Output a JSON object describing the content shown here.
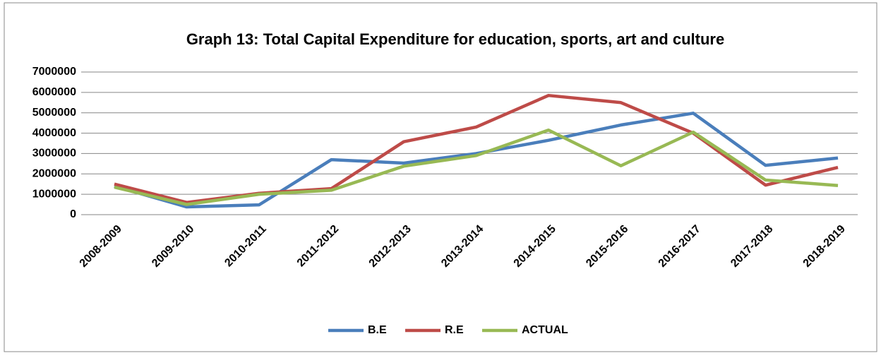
{
  "chart_data": {
    "type": "line",
    "title": "Graph 13: Total Capital Expenditure for education, sports, art and culture",
    "categories": [
      "2008-2009",
      "2009-2010",
      "2010-2011",
      "2011-2012",
      "2012-2013",
      "2013-2014",
      "2014-2015",
      "2015-2016",
      "2016-2017",
      "2017-2018",
      "2018-2019"
    ],
    "series": [
      {
        "name": "B.E",
        "color": "#4a7ebb",
        "values": [
          1400000,
          380000,
          480000,
          2700000,
          2530000,
          3000000,
          3650000,
          4400000,
          4980000,
          2420000,
          2780000
        ]
      },
      {
        "name": "R.E",
        "color": "#be4b48",
        "values": [
          1500000,
          600000,
          1050000,
          1280000,
          3580000,
          4300000,
          5850000,
          5500000,
          4000000,
          1450000,
          2320000
        ]
      },
      {
        "name": "ACTUAL",
        "color": "#98b954",
        "values": [
          1350000,
          500000,
          1000000,
          1200000,
          2380000,
          2900000,
          4150000,
          2400000,
          4050000,
          1700000,
          1430000
        ]
      }
    ],
    "ylim": [
      0,
      7000000
    ],
    "yticks": [
      0,
      1000000,
      2000000,
      3000000,
      4000000,
      5000000,
      6000000,
      7000000
    ],
    "grid": true,
    "legend": "bottom"
  }
}
